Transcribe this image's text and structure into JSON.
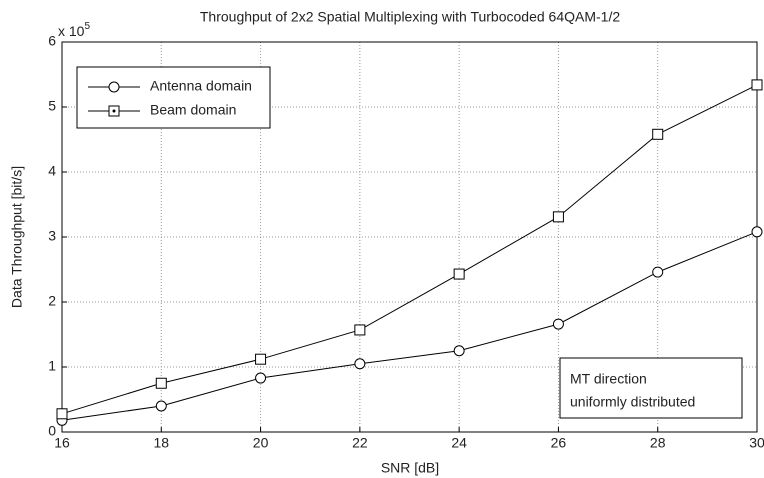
{
  "chart_data": {
    "type": "line",
    "title": "Throughput of 2x2 Spatial Multiplexing with Turbocoded 64QAM-1/2",
    "x_label": "SNR [dB]",
    "y_label": "Data Throughput [bit/s]",
    "y_multiplier": {
      "base": "x 10",
      "exponent": "5"
    },
    "x": [
      16,
      18,
      20,
      22,
      24,
      26,
      28,
      30
    ],
    "series": [
      {
        "name": "Antenna domain",
        "color": "#000000",
        "marker": "circle",
        "values": [
          0.18,
          0.4,
          0.83,
          1.05,
          1.25,
          1.66,
          2.46,
          3.08
        ]
      },
      {
        "name": "Beam domain",
        "color": "#000000",
        "marker": "square",
        "values": [
          0.28,
          0.75,
          1.12,
          1.57,
          2.43,
          3.31,
          4.58,
          5.34
        ]
      }
    ],
    "xlim": [
      16,
      30
    ],
    "xticks": [
      16,
      18,
      20,
      22,
      24,
      26,
      28,
      30
    ],
    "ylim": [
      0,
      6
    ],
    "yticks": [
      0,
      1,
      2,
      3,
      4,
      5,
      6
    ],
    "grid": true,
    "legend": "upper left",
    "annotation": [
      "MT direction",
      "uniformly distributed"
    ]
  }
}
